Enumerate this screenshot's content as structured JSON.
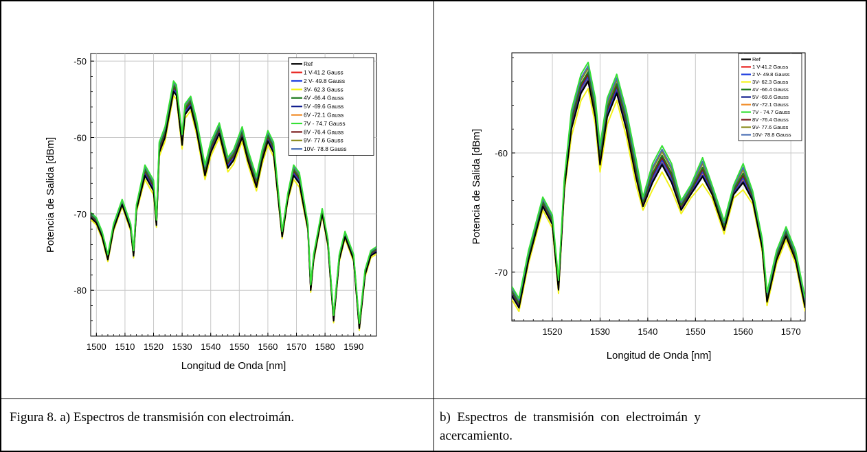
{
  "captions": {
    "left": "Figura 8. a) Espectros de transmisión con electroimán.",
    "right_line1": "b)  Espectros  de  transmisión  con  electroimán  y",
    "right_line2": "acercamiento."
  },
  "legend_entries": [
    {
      "name": "Ref",
      "color": "#000000"
    },
    {
      "name": "1 V-41.2 Gauss",
      "color": "#e8201c"
    },
    {
      "name": "2 V- 49.8 Gauss",
      "color": "#1f3fe0"
    },
    {
      "name": "3V- 62.3 Gauss",
      "color": "#f2f21a"
    },
    {
      "name": "4V -66.4 Gauss",
      "color": "#1e7a1e"
    },
    {
      "name": "5V -69.6 Gauss",
      "color": "#0d1a8c"
    },
    {
      "name": "6V -72.1 Gauss",
      "color": "#f08a24"
    },
    {
      "name": "7V - 74.7 Gauss",
      "color": "#35e035"
    },
    {
      "name": "8V -76.4 Gauss",
      "color": "#7a1a1a"
    },
    {
      "name": "9V- 77.6 Gauss",
      "color": "#8a8a1a"
    },
    {
      "name": "10V- 78.8 Gauss",
      "color": "#4a6fb5"
    }
  ],
  "chart_data": [
    {
      "type": "line",
      "xlabel": "Longitud de Onda [nm]",
      "ylabel": "Potencia de Salida [dBm]",
      "xlim": [
        1498,
        1598
      ],
      "ylim": [
        -86,
        -49
      ],
      "xticks": [
        "1500",
        "1510",
        "1520",
        "1530",
        "1540",
        "1550",
        "1560",
        "1570",
        "1580",
        "1590"
      ],
      "yticks": [
        "-50",
        "-60",
        "-70",
        "-80"
      ],
      "grid": true,
      "legend_position": "top-right",
      "base_curve": {
        "x": [
          1498,
          1500,
          1502,
          1504,
          1506,
          1509,
          1512,
          1513,
          1514,
          1517,
          1520,
          1521,
          1522,
          1524,
          1527,
          1528,
          1530,
          1531,
          1533,
          1535,
          1538,
          1540,
          1543,
          1546,
          1548,
          1551,
          1553,
          1556,
          1558,
          1560,
          1562,
          1565,
          1567,
          1569,
          1571,
          1574,
          1575,
          1576,
          1578,
          1579,
          1581,
          1583,
          1585,
          1587,
          1590,
          1592,
          1594,
          1596,
          1598
        ],
        "y": [
          -70.5,
          -71.2,
          -73,
          -76,
          -72,
          -68.8,
          -72,
          -75.5,
          -69.5,
          -65,
          -67,
          -71.5,
          -62,
          -60,
          -54,
          -54.5,
          -61,
          -57,
          -56,
          -59,
          -65,
          -62,
          -59.5,
          -64,
          -63,
          -60,
          -63,
          -66.5,
          -63,
          -60.5,
          -62,
          -73,
          -68,
          -65,
          -66,
          -72,
          -80,
          -76,
          -72,
          -70,
          -74,
          -84,
          -76,
          -73,
          -76,
          -85,
          -78,
          -75.5,
          -75
        ]
      },
      "series_offsets_db": [
        0,
        0.2,
        0.4,
        -0.5,
        0.8,
        0.1,
        0.3,
        1.4,
        0.6,
        1.0,
        1.2
      ]
    },
    {
      "type": "line",
      "xlabel": "Longitud de Onda [nm]",
      "ylabel": "Potencia de Salida [dBm]",
      "xlim": [
        1511.5,
        1573
      ],
      "ylim": [
        -74.1,
        -51.6
      ],
      "xticks": [
        "1520",
        "1530",
        "1540",
        "1550",
        "1560",
        "1570"
      ],
      "yticks": [
        "-60",
        "-70"
      ],
      "grid": true,
      "legend_position": "top-right",
      "base_curve": {
        "x": [
          1511.5,
          1513,
          1515,
          1518,
          1520,
          1521.3,
          1522.5,
          1524,
          1526,
          1527.5,
          1529,
          1530,
          1531.5,
          1533.5,
          1535.5,
          1537.5,
          1539,
          1541,
          1543,
          1545,
          1547,
          1549,
          1551.5,
          1553.5,
          1556,
          1558,
          1560,
          1562,
          1564,
          1565,
          1567,
          1569,
          1571,
          1573
        ],
        "y": [
          -72,
          -73,
          -69,
          -64.5,
          -66,
          -71.5,
          -63,
          -58,
          -55,
          -54,
          -57,
          -61,
          -57,
          -55,
          -58,
          -62,
          -64.5,
          -62.5,
          -61,
          -62.5,
          -64.8,
          -63.5,
          -62,
          -63.5,
          -66.5,
          -63.5,
          -62.5,
          -64,
          -68,
          -72.5,
          -69,
          -67,
          -69,
          -73
        ]
      },
      "series_offsets_db": [
        0,
        0.2,
        0.4,
        -0.6,
        0.8,
        0.1,
        0.3,
        1.6,
        0.6,
        1.1,
        1.3
      ]
    }
  ]
}
